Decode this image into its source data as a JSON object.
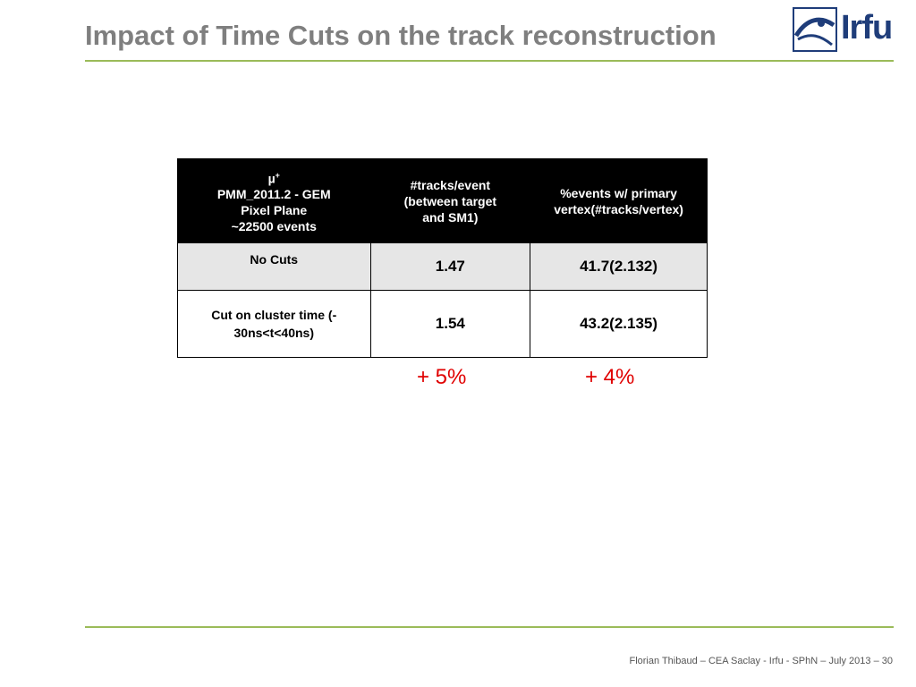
{
  "slide": {
    "title": "Impact of Time Cuts on the track reconstruction",
    "logo_text": "Irfu",
    "footer": "Florian Thibaud  –  CEA Saclay - Irfu - SPhN  –  July 2013 – 30",
    "colors": {
      "accent_line": "#9bbb59",
      "title": "#7f7f7f",
      "highlight": "#e00000",
      "logo": "#1f3d7a"
    }
  },
  "table": {
    "header": {
      "col1_line1": "µ",
      "col1_sup": "+",
      "col1_line2": "PMM_2011.2 - GEM",
      "col1_line3": "Pixel Plane",
      "col1_line4": "~22500 events",
      "col2_line1": "#tracks/event",
      "col2_line2": "(between target",
      "col2_line3": "and SM1)",
      "col3_line1": "%events w/ primary",
      "col3_line2": "vertex(#tracks/vertex)"
    },
    "rows": [
      {
        "label": "No Cuts",
        "tracks": "1.47",
        "events": "41.7(2.132)"
      },
      {
        "label_line1": "Cut on cluster time (-",
        "label_line2": "30ns<t<40ns)",
        "tracks": "1.54",
        "events": "43.2(2.135)"
      }
    ],
    "improvement": {
      "tracks": "+ 5%",
      "events": "+ 4%"
    }
  }
}
